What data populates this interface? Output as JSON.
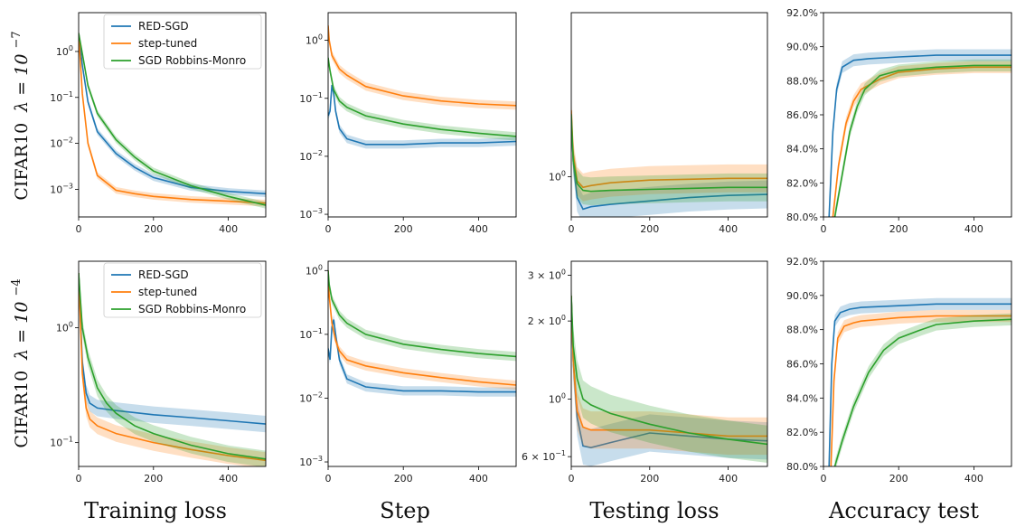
{
  "columns": [
    "Training loss",
    "Step",
    "Testing loss",
    "Accuracy test"
  ],
  "rows": [
    {
      "label_main": "CIFAR10",
      "label_lambda": "λ = 10",
      "label_exp": "−7"
    },
    {
      "label_main": "CIFAR10",
      "label_lambda": "λ = 10",
      "label_exp": "−4"
    }
  ],
  "series_colors": {
    "RED-SGD": "#1f77b4",
    "step-tuned": "#ff7f0e",
    "SGD Robbins-Monro": "#2ca02c"
  },
  "chart_data": [
    {
      "type": "line",
      "row": 0,
      "col": 0,
      "xlabel": "",
      "ylabel": "",
      "xlim": [
        0,
        500
      ],
      "ylim": [
        0.00025,
        7
      ],
      "yscale": "log",
      "xticks": [
        "0",
        "200",
        "400"
      ],
      "yticks": [
        "10^0",
        "10^-1",
        "10^-2",
        "10^-3"
      ],
      "ytick_values": [
        1,
        0.1,
        0.01,
        0.001
      ],
      "legend": "upper right",
      "grid": false,
      "band": "shaded",
      "series": [
        {
          "name": "RED-SGD",
          "x": [
            0,
            10,
            25,
            50,
            100,
            150,
            200,
            300,
            400,
            500
          ],
          "values": [
            2.5,
            0.5,
            0.08,
            0.018,
            0.006,
            0.003,
            0.0018,
            0.0011,
            0.0009,
            0.0008
          ]
        },
        {
          "name": "step-tuned",
          "x": [
            0,
            10,
            25,
            50,
            100,
            150,
            200,
            300,
            400,
            500
          ],
          "values": [
            2.5,
            0.12,
            0.01,
            0.002,
            0.00095,
            0.0008,
            0.0007,
            0.0006,
            0.00055,
            0.0005
          ]
        },
        {
          "name": "SGD Robbins-Monro",
          "x": [
            0,
            10,
            25,
            50,
            100,
            150,
            200,
            300,
            400,
            500
          ],
          "values": [
            2.5,
            0.9,
            0.18,
            0.045,
            0.012,
            0.005,
            0.0025,
            0.0012,
            0.0007,
            0.00045
          ]
        }
      ]
    },
    {
      "type": "line",
      "row": 0,
      "col": 1,
      "xlabel": "",
      "ylabel": "",
      "xlim": [
        0,
        500
      ],
      "ylim": [
        0.0009,
        3
      ],
      "yscale": "log",
      "xticks": [
        "0",
        "200",
        "400"
      ],
      "yticks": [
        "10^0",
        "10^-1",
        "10^-2",
        "10^-3"
      ],
      "ytick_values": [
        1,
        0.1,
        0.01,
        0.001
      ],
      "grid": false,
      "band": "shaded",
      "series": [
        {
          "name": "RED-SGD",
          "x": [
            0,
            5,
            10,
            15,
            20,
            30,
            50,
            100,
            200,
            300,
            400,
            500
          ],
          "values": [
            0.05,
            0.06,
            0.17,
            0.12,
            0.06,
            0.03,
            0.02,
            0.016,
            0.016,
            0.017,
            0.017,
            0.018
          ]
        },
        {
          "name": "step-tuned",
          "x": [
            0,
            3,
            10,
            30,
            50,
            100,
            200,
            300,
            400,
            500
          ],
          "values": [
            1.8,
            1.0,
            0.55,
            0.32,
            0.25,
            0.16,
            0.11,
            0.09,
            0.08,
            0.075
          ]
        },
        {
          "name": "SGD Robbins-Monro",
          "x": [
            0,
            5,
            15,
            30,
            50,
            100,
            200,
            300,
            400,
            500
          ],
          "values": [
            0.5,
            0.3,
            0.14,
            0.09,
            0.07,
            0.05,
            0.036,
            0.029,
            0.025,
            0.022
          ]
        }
      ]
    },
    {
      "type": "line",
      "row": 0,
      "col": 2,
      "xlabel": "",
      "ylabel": "",
      "xlim": [
        0,
        500
      ],
      "ylim": [
        0.62,
        7
      ],
      "yscale": "log",
      "xticks": [
        "0",
        "200",
        "400"
      ],
      "yticks": [
        "10^0"
      ],
      "ytick_values": [
        1
      ],
      "grid": false,
      "band": "shaded",
      "series": [
        {
          "name": "RED-SGD",
          "x": [
            0,
            5,
            15,
            30,
            50,
            100,
            200,
            300,
            400,
            500
          ],
          "values": [
            2.0,
            1.2,
            0.78,
            0.68,
            0.7,
            0.72,
            0.75,
            0.78,
            0.8,
            0.81
          ]
        },
        {
          "name": "step-tuned",
          "x": [
            0,
            5,
            15,
            30,
            50,
            100,
            200,
            300,
            400,
            500
          ],
          "values": [
            2.2,
            1.3,
            0.95,
            0.88,
            0.9,
            0.93,
            0.96,
            0.97,
            0.98,
            0.98
          ]
        },
        {
          "name": "SGD Robbins-Monro",
          "x": [
            0,
            5,
            15,
            30,
            50,
            100,
            200,
            300,
            400,
            500
          ],
          "values": [
            2.1,
            1.2,
            0.92,
            0.85,
            0.84,
            0.85,
            0.86,
            0.87,
            0.88,
            0.88
          ]
        }
      ]
    },
    {
      "type": "line",
      "row": 0,
      "col": 3,
      "xlabel": "",
      "ylabel": "",
      "xlim": [
        0,
        500
      ],
      "ylim": [
        80,
        92
      ],
      "yscale": "linear",
      "xticks": [
        "0",
        "200",
        "400"
      ],
      "yticks": [
        "80.0%",
        "82.0%",
        "84.0%",
        "86.0%",
        "88.0%",
        "90.0%",
        "92.0%"
      ],
      "ytick_values": [
        80,
        82,
        84,
        86,
        88,
        90,
        92
      ],
      "grid": false,
      "band": "shaded",
      "series": [
        {
          "name": "RED-SGD",
          "x": [
            15,
            25,
            35,
            50,
            80,
            120,
            200,
            300,
            400,
            500
          ],
          "values": [
            80,
            85,
            87.5,
            88.8,
            89.2,
            89.3,
            89.4,
            89.5,
            89.5,
            89.5
          ]
        },
        {
          "name": "step-tuned",
          "x": [
            25,
            40,
            60,
            80,
            100,
            150,
            200,
            300,
            400,
            500
          ],
          "values": [
            80,
            83,
            85.5,
            86.8,
            87.5,
            88.1,
            88.5,
            88.7,
            88.8,
            88.8
          ]
        },
        {
          "name": "SGD Robbins-Monro",
          "x": [
            30,
            50,
            70,
            90,
            110,
            150,
            200,
            300,
            400,
            500
          ],
          "values": [
            80,
            82.5,
            85,
            86.5,
            87.5,
            88.3,
            88.6,
            88.8,
            88.9,
            88.9
          ]
        }
      ]
    },
    {
      "type": "line",
      "row": 1,
      "col": 0,
      "xlabel": "",
      "ylabel": "",
      "xlim": [
        0,
        500
      ],
      "ylim": [
        0.062,
        3.8
      ],
      "yscale": "log",
      "xticks": [
        "0",
        "200",
        "400"
      ],
      "yticks": [
        "10^0",
        "10^-1"
      ],
      "ytick_values": [
        1,
        0.1
      ],
      "legend": "upper right",
      "grid": false,
      "band": "shaded",
      "series": [
        {
          "name": "RED-SGD",
          "x": [
            0,
            10,
            20,
            30,
            50,
            100,
            200,
            300,
            400,
            500
          ],
          "values": [
            3.0,
            0.5,
            0.27,
            0.22,
            0.2,
            0.19,
            0.175,
            0.165,
            0.155,
            0.145
          ]
        },
        {
          "name": "step-tuned",
          "x": [
            0,
            10,
            20,
            30,
            50,
            100,
            200,
            300,
            400,
            500
          ],
          "values": [
            3.0,
            0.4,
            0.2,
            0.16,
            0.14,
            0.12,
            0.1,
            0.087,
            0.077,
            0.07
          ]
        },
        {
          "name": "SGD Robbins-Monro",
          "x": [
            0,
            10,
            25,
            50,
            75,
            100,
            150,
            200,
            300,
            400,
            500
          ],
          "values": [
            3.0,
            1.0,
            0.55,
            0.3,
            0.22,
            0.18,
            0.14,
            0.12,
            0.095,
            0.08,
            0.072
          ]
        }
      ]
    },
    {
      "type": "line",
      "row": 1,
      "col": 1,
      "xlabel": "",
      "ylabel": "",
      "xlim": [
        0,
        500
      ],
      "ylim": [
        0.00085,
        1.4
      ],
      "yscale": "log",
      "xticks": [
        "0",
        "200",
        "400"
      ],
      "yticks": [
        "10^0",
        "10^-1",
        "10^-2",
        "10^-3"
      ],
      "ytick_values": [
        1,
        0.1,
        0.01,
        0.001
      ],
      "grid": false,
      "band": "shaded",
      "series": [
        {
          "name": "RED-SGD",
          "x": [
            0,
            5,
            10,
            15,
            20,
            30,
            50,
            100,
            200,
            300,
            400,
            500
          ],
          "values": [
            0.06,
            0.04,
            0.13,
            0.17,
            0.1,
            0.04,
            0.02,
            0.015,
            0.013,
            0.013,
            0.0125,
            0.0125
          ]
        },
        {
          "name": "step-tuned",
          "x": [
            0,
            3,
            10,
            20,
            30,
            50,
            100,
            200,
            300,
            400,
            500
          ],
          "values": [
            1.0,
            0.4,
            0.15,
            0.08,
            0.055,
            0.04,
            0.032,
            0.025,
            0.021,
            0.018,
            0.016
          ]
        },
        {
          "name": "SGD Robbins-Monro",
          "x": [
            0,
            3,
            10,
            30,
            50,
            100,
            200,
            300,
            400,
            500
          ],
          "values": [
            1.0,
            0.6,
            0.35,
            0.2,
            0.15,
            0.1,
            0.07,
            0.058,
            0.05,
            0.045
          ]
        }
      ]
    },
    {
      "type": "line",
      "row": 1,
      "col": 2,
      "xlabel": "",
      "ylabel": "",
      "xlim": [
        0,
        500
      ],
      "ylim": [
        0.55,
        3.4
      ],
      "yscale": "log",
      "xticks": [
        "0",
        "200",
        "400"
      ],
      "yticks": [
        "3 × 10^0",
        "2 × 10^0",
        "10^0",
        "6 × 10^-1"
      ],
      "ytick_values": [
        3,
        2,
        1,
        0.6
      ],
      "grid": false,
      "band": "shaded",
      "series": [
        {
          "name": "RED-SGD",
          "x": [
            0,
            5,
            15,
            30,
            50,
            100,
            200,
            300,
            400,
            500
          ],
          "values": [
            2.5,
            1.4,
            0.85,
            0.66,
            0.65,
            0.68,
            0.74,
            0.72,
            0.7,
            0.69
          ]
        },
        {
          "name": "step-tuned",
          "x": [
            0,
            5,
            15,
            30,
            50,
            100,
            200,
            300,
            400,
            500
          ],
          "values": [
            2.5,
            1.4,
            0.9,
            0.78,
            0.76,
            0.76,
            0.76,
            0.74,
            0.72,
            0.72
          ]
        },
        {
          "name": "SGD Robbins-Monro",
          "x": [
            0,
            5,
            15,
            30,
            50,
            100,
            200,
            300,
            400,
            500
          ],
          "values": [
            2.5,
            1.6,
            1.2,
            1.0,
            0.95,
            0.88,
            0.8,
            0.74,
            0.7,
            0.67
          ]
        }
      ]
    },
    {
      "type": "line",
      "row": 1,
      "col": 3,
      "xlabel": "",
      "ylabel": "",
      "xlim": [
        0,
        500
      ],
      "ylim": [
        80,
        92
      ],
      "yscale": "linear",
      "xticks": [
        "0",
        "200",
        "400"
      ],
      "yticks": [
        "80.0%",
        "82.0%",
        "84.0%",
        "86.0%",
        "88.0%",
        "90.0%",
        "92.0%"
      ],
      "ytick_values": [
        80,
        82,
        84,
        86,
        88,
        90,
        92
      ],
      "grid": false,
      "band": "shaded",
      "series": [
        {
          "name": "RED-SGD",
          "x": [
            15,
            22,
            30,
            45,
            70,
            100,
            200,
            300,
            400,
            500
          ],
          "values": [
            80,
            86,
            88.5,
            89,
            89.2,
            89.3,
            89.4,
            89.5,
            89.5,
            89.5
          ]
        },
        {
          "name": "step-tuned",
          "x": [
            20,
            28,
            38,
            55,
            80,
            100,
            200,
            300,
            400,
            500
          ],
          "values": [
            80,
            85,
            87.5,
            88.2,
            88.4,
            88.5,
            88.7,
            88.8,
            88.8,
            88.8
          ]
        },
        {
          "name": "SGD Robbins-Monro",
          "x": [
            30,
            50,
            80,
            120,
            160,
            200,
            260,
            300,
            400,
            500
          ],
          "values": [
            80,
            81.5,
            83.5,
            85.5,
            86.8,
            87.5,
            88.0,
            88.3,
            88.5,
            88.6
          ]
        }
      ]
    }
  ]
}
